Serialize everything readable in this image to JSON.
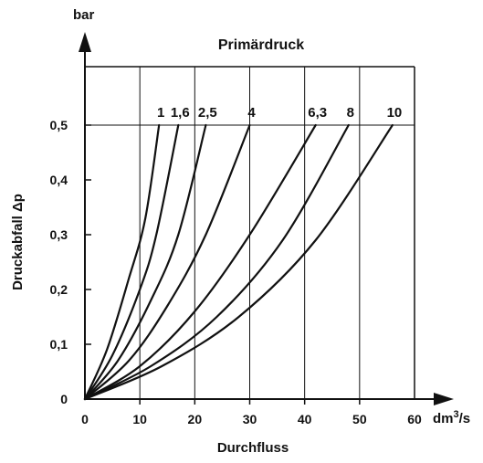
{
  "chart_data": {
    "type": "line",
    "title": "Primärdruck",
    "xlabel": "Durchfluss",
    "ylabel": "Druckabfall Δp",
    "xunit_base": "dm",
    "xunit_sup": "3",
    "xunit_tail": "/s",
    "yunit": "bar",
    "xlim": [
      0,
      60
    ],
    "ylim": [
      0,
      0.5
    ],
    "x_ticks": [
      {
        "value": 0,
        "label": "0"
      },
      {
        "value": 10,
        "label": "10"
      },
      {
        "value": 20,
        "label": "20"
      },
      {
        "value": 30,
        "label": "30"
      },
      {
        "value": 40,
        "label": "40"
      },
      {
        "value": 50,
        "label": "50"
      },
      {
        "value": 60,
        "label": "60"
      }
    ],
    "y_ticks": [
      {
        "value": 0,
        "label": "0"
      },
      {
        "value": 0.1,
        "label": "0,1"
      },
      {
        "value": 0.2,
        "label": "0,2"
      },
      {
        "value": 0.3,
        "label": "0,3"
      },
      {
        "value": 0.4,
        "label": "0,4"
      },
      {
        "value": 0.5,
        "label": "0,5"
      }
    ],
    "grid": "major gridlines at x=10..60 and y=0,5",
    "series": [
      {
        "name": "1",
        "points": [
          [
            0,
            0
          ],
          [
            4,
            0.09
          ],
          [
            8,
            0.22
          ],
          [
            11,
            0.33
          ],
          [
            13.5,
            0.5
          ]
        ]
      },
      {
        "name": "1,6",
        "points": [
          [
            0,
            0
          ],
          [
            5,
            0.08
          ],
          [
            10,
            0.2
          ],
          [
            13,
            0.3
          ],
          [
            17,
            0.5
          ]
        ]
      },
      {
        "name": "2,5",
        "points": [
          [
            0,
            0
          ],
          [
            6,
            0.07
          ],
          [
            12,
            0.18
          ],
          [
            17,
            0.3
          ],
          [
            22,
            0.5
          ]
        ]
      },
      {
        "name": "4",
        "points": [
          [
            0,
            0
          ],
          [
            8,
            0.07
          ],
          [
            15,
            0.17
          ],
          [
            22,
            0.3
          ],
          [
            30,
            0.5
          ]
        ]
      },
      {
        "name": "6,3",
        "points": [
          [
            0,
            0
          ],
          [
            10,
            0.06
          ],
          [
            20,
            0.16
          ],
          [
            30,
            0.3
          ],
          [
            42,
            0.5
          ]
        ]
      },
      {
        "name": "8",
        "points": [
          [
            0,
            0
          ],
          [
            12,
            0.06
          ],
          [
            24,
            0.15
          ],
          [
            36,
            0.29
          ],
          [
            48,
            0.5
          ]
        ]
      },
      {
        "name": "10",
        "points": [
          [
            0,
            0
          ],
          [
            14,
            0.06
          ],
          [
            28,
            0.15
          ],
          [
            42,
            0.29
          ],
          [
            56,
            0.5
          ]
        ]
      }
    ]
  }
}
